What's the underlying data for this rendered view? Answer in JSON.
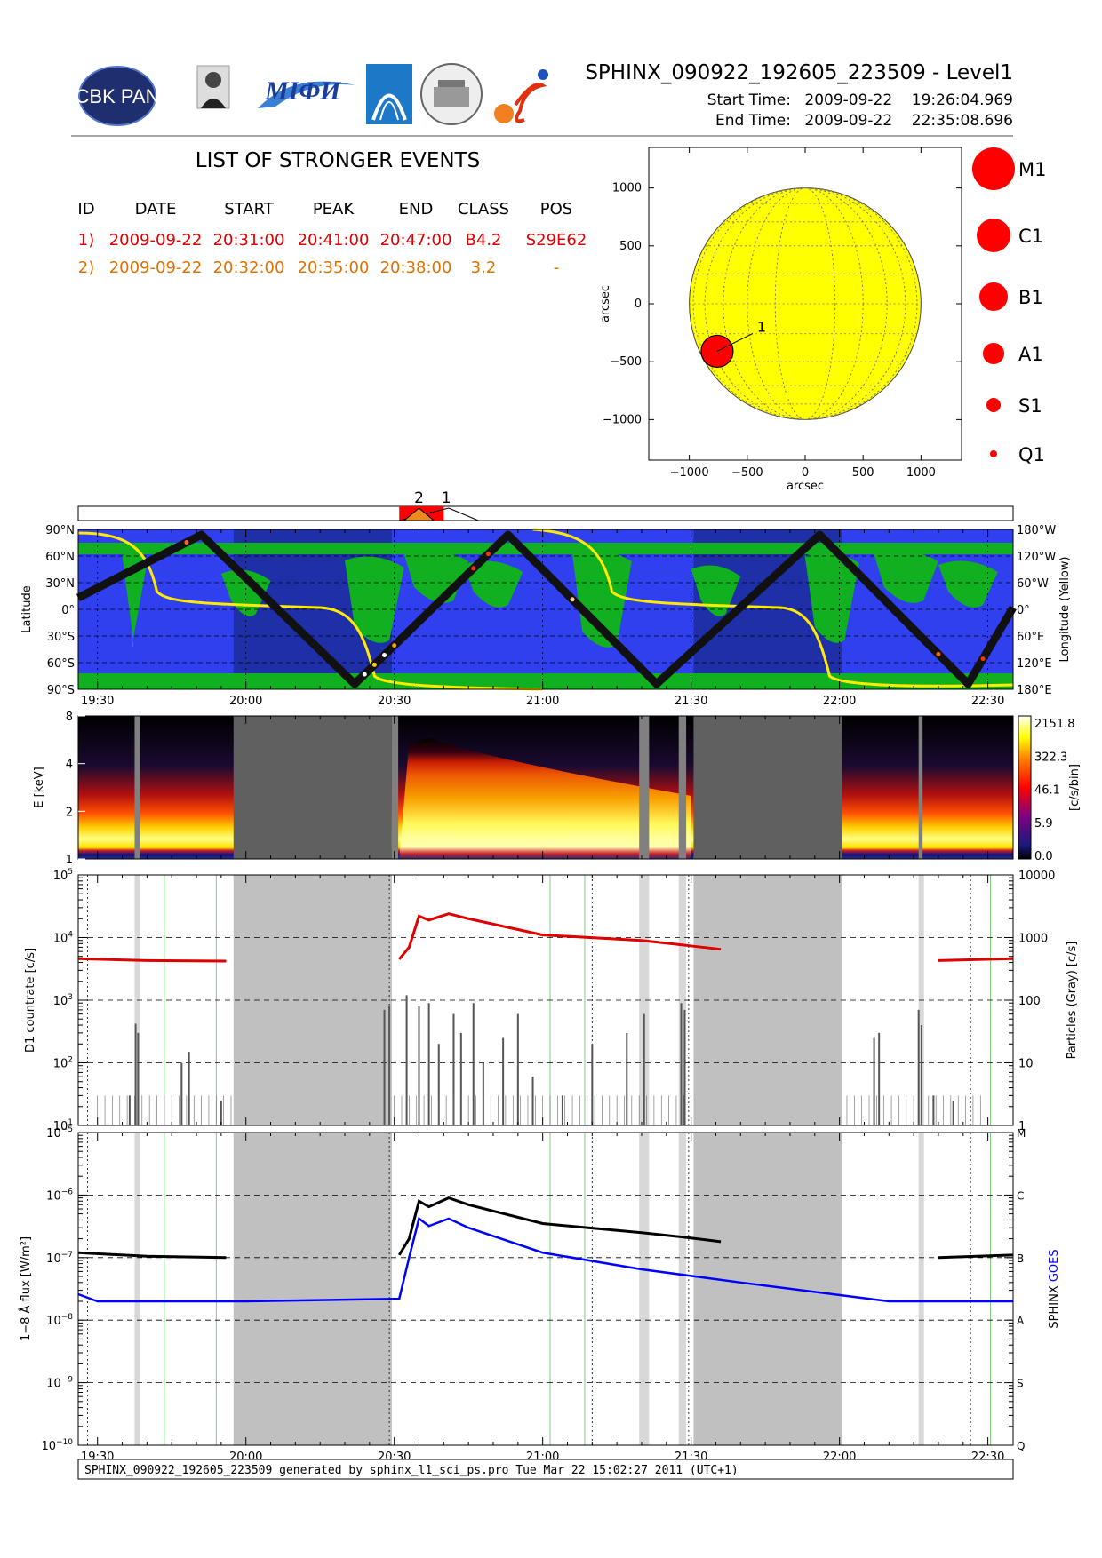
{
  "header": {
    "title": "SPHINX_090922_192605_223509 - Level1",
    "start_label": "Start Time:",
    "start_value": "2009-09-22    19:26:04.969",
    "end_label": "End Time:",
    "end_value": "2009-09-22    22:35:08.696",
    "logos": [
      "CBK PAN",
      "P.N.Lebedev Physical Institute of the Russian Academy of Science",
      "MIΦИ",
      "arc-logo",
      "building-seal",
      "S-logo"
    ]
  },
  "events_table": {
    "title": "LIST OF STRONGER EVENTS",
    "columns": [
      "ID",
      "DATE",
      "START",
      "PEAK",
      "END",
      "CLASS",
      "POS"
    ],
    "rows": [
      {
        "id": "1)",
        "date": "2009-09-22",
        "start": "20:31:00",
        "peak": "20:41:00",
        "end": "20:47:00",
        "class": "B4.2",
        "pos": "S29E62",
        "color": "#e00000"
      },
      {
        "id": "2)",
        "date": "2009-09-22",
        "start": "20:32:00",
        "peak": "20:35:00",
        "end": "20:38:00",
        "class": "3.2",
        "pos": "-",
        "color": "#e07000"
      }
    ]
  },
  "chart_data": [
    {
      "type": "scatter",
      "name": "sun-disk",
      "xlabel": "arcsec",
      "ylabel": "arcsec",
      "xlim": [
        -1350,
        1350
      ],
      "ylim": [
        -1350,
        1350
      ],
      "xticks": [
        -1000,
        -500,
        0,
        500,
        1000
      ],
      "yticks": [
        -1000,
        -500,
        0,
        500,
        1000
      ],
      "xtick_labels": [
        "−1000",
        "−500",
        "0",
        "500",
        "1000"
      ],
      "ytick_labels": [
        "−1000",
        "−500",
        "0",
        "500",
        "1000"
      ],
      "solar_radius": 1000,
      "disk_color": "#ffff00",
      "points": [
        {
          "label": "1",
          "x": -760,
          "y": -410,
          "size_class": "B4.2"
        }
      ],
      "size_legend": [
        "M1",
        "C1",
        "B1",
        "A1",
        "S1",
        "Q1"
      ]
    },
    {
      "type": "line",
      "name": "orbit-track",
      "ylabel_left": "Latitude",
      "ylabel_right": "Longitude (Yellow)",
      "left_ticks": [
        "90°N",
        "60°N",
        "30°N",
        "0°",
        "30°S",
        "60°S",
        "90°S"
      ],
      "right_ticks": [
        "180°W",
        "120°W",
        "60°W",
        "0°",
        "60°E",
        "120°E",
        "180°E"
      ],
      "x_ticks": [
        "19:30",
        "20:00",
        "20:30",
        "21:00",
        "21:30",
        "22:00",
        "22:30"
      ],
      "x_range_min": [
        1166.1,
        1355.1
      ],
      "latitude_track": {
        "x": [
          1166.1,
          1191,
          1222,
          1253,
          1283,
          1316,
          1346,
          1355.1
        ],
        "y": [
          13,
          84,
          -84,
          84,
          -84,
          84,
          -84,
          2
        ]
      },
      "event_markers": [
        {
          "label": "2",
          "start": 1232,
          "peak": 1235,
          "end": 1238
        },
        {
          "label": "1",
          "start": 1231,
          "peak": 1241,
          "end": 1247
        }
      ]
    },
    {
      "type": "heatmap",
      "name": "spectrogram",
      "ylabel": "E [keV]",
      "yticks": [
        "1",
        "2",
        "4",
        "8"
      ],
      "colorbar_label": "[c/s/bin]",
      "colorbar_ticks": [
        "2151.8",
        "322.3",
        "46.1",
        "5.9",
        "0.0"
      ]
    },
    {
      "type": "line",
      "name": "d1-countrate",
      "ylabel_left": "D1 countrate [c/s]",
      "ylabel_right": "Particles (Gray) [c/s]",
      "left_ticks": [
        "10^5",
        "10^4",
        "10^3",
        "10^2",
        "10^1"
      ],
      "right_ticks": [
        "10000",
        "1000",
        "100",
        "10",
        "1"
      ],
      "ylim": [
        10,
        100000
      ],
      "series": [
        {
          "color": "#e00000",
          "x": [
            1166.1,
            1180,
            1196,
            1231,
            1233,
            1235,
            1237,
            1241,
            1245,
            1260,
            1280,
            1289,
            1296,
            1310,
            1340,
            1355
          ],
          "y": [
            4600,
            4300,
            4200,
            4500,
            7000,
            22000,
            19000,
            24000,
            20000,
            11000,
            9000,
            7500,
            6500,
            null,
            4300,
            4600
          ]
        }
      ]
    },
    {
      "type": "line",
      "name": "xray-flux",
      "ylabel_left": "1−8 Å flux [W/m²]",
      "ylabel_right": [
        "SPHINX",
        "GOES"
      ],
      "left_ticks": [
        "10^-5",
        "10^-6",
        "10^-7",
        "10^-8",
        "10^-9",
        "10^-10"
      ],
      "right_ticks": [
        "M",
        "C",
        "B",
        "A",
        "S",
        "Q"
      ],
      "ylim": [
        1e-10,
        1e-05
      ],
      "series": [
        {
          "name": "SPHINX",
          "color": "#000000",
          "x": [
            1166.1,
            1180,
            1196,
            1231,
            1233,
            1235,
            1237,
            1241,
            1245,
            1260,
            1280,
            1289,
            1296,
            1310,
            1340,
            1355
          ],
          "y": [
            1.2e-07,
            1.05e-07,
            1e-07,
            1.1e-07,
            2e-07,
            8e-07,
            6.5e-07,
            9e-07,
            7e-07,
            3.5e-07,
            2.5e-07,
            2.1e-07,
            1.8e-07,
            null,
            1e-07,
            1.1e-07
          ]
        },
        {
          "name": "GOES",
          "color": "#0000ff",
          "x": [
            1166.1,
            1170,
            1200,
            1231,
            1233,
            1235,
            1237,
            1241,
            1245,
            1260,
            1280,
            1300,
            1330,
            1355
          ],
          "y": [
            2.6e-08,
            2e-08,
            2e-08,
            2.2e-08,
            1e-07,
            4.2e-07,
            3.2e-07,
            4.2e-07,
            3e-07,
            1.2e-07,
            6.5e-08,
            4e-08,
            2e-08,
            2e-08
          ]
        }
      ]
    }
  ],
  "footer": {
    "text": "SPHINX_090922_192605_223509 generated by sphinx_l1_sci_ps.pro Tue Mar 22 15:02:27 2011 (UTC+1)"
  }
}
